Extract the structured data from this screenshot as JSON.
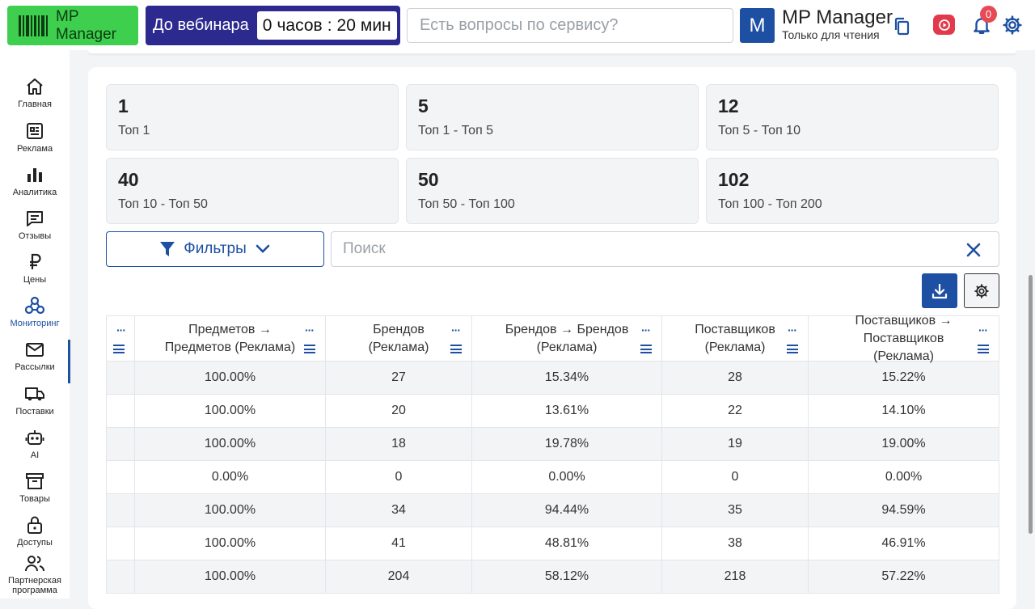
{
  "header": {
    "logo_label": "MP Manager",
    "webinar_label": "До вебинара",
    "timer": {
      "hours": "0",
      "hours_unit": "часов",
      "sep": ":",
      "minutes": "20",
      "minutes_unit": "мин"
    },
    "help_placeholder": "Есть вопросы по сервису?",
    "account": {
      "initial": "M",
      "name": "MP Manager",
      "role": "Только для чтения"
    },
    "notifications_count": "0"
  },
  "sidebar": {
    "items": [
      {
        "label": "Главная",
        "icon": "home-icon"
      },
      {
        "label": "Реклама",
        "icon": "ads-icon"
      },
      {
        "label": "Аналитика",
        "icon": "analytics-icon"
      },
      {
        "label": "Отзывы",
        "icon": "reviews-icon"
      },
      {
        "label": "Цены",
        "icon": "ruble-icon"
      },
      {
        "label": "Мониторинг",
        "icon": "monitoring-icon",
        "active": true
      },
      {
        "label": "Рассылки",
        "icon": "mail-icon"
      },
      {
        "label": "Поставки",
        "icon": "truck-icon"
      },
      {
        "label": "AI",
        "icon": "robot-icon"
      },
      {
        "label": "Товары",
        "icon": "archive-icon"
      },
      {
        "label": "Доступы",
        "icon": "lock-icon"
      },
      {
        "label": "Партнерская программа",
        "icon": "partners-icon"
      }
    ]
  },
  "stats": [
    {
      "value": "1",
      "label": "Топ 1"
    },
    {
      "value": "5",
      "label": "Топ 1 - Топ 5"
    },
    {
      "value": "12",
      "label": "Топ 5 - Топ 10"
    },
    {
      "value": "40",
      "label": "Топ 10 - Топ 50"
    },
    {
      "value": "50",
      "label": "Топ 50 - Топ 100"
    },
    {
      "value": "102",
      "label": "Топ 100 - Топ 200"
    }
  ],
  "filters": {
    "label": "Фильтры"
  },
  "search": {
    "placeholder": "Поиск"
  },
  "table": {
    "columns": [
      "Предметов → Предметов (Реклама)",
      "Брендов (Реклама)",
      "Брендов → Брендов (Реклама)",
      "Поставщиков (Реклама)",
      "Поставщиков → Поставщиков (Реклама)"
    ],
    "rows": [
      [
        "100.00%",
        "27",
        "15.34%",
        "28",
        "15.22%"
      ],
      [
        "100.00%",
        "20",
        "13.61%",
        "22",
        "14.10%"
      ],
      [
        "100.00%",
        "18",
        "19.78%",
        "19",
        "19.00%"
      ],
      [
        "0.00%",
        "0",
        "0.00%",
        "0",
        "0.00%"
      ],
      [
        "100.00%",
        "34",
        "94.44%",
        "35",
        "94.59%"
      ],
      [
        "100.00%",
        "41",
        "48.81%",
        "38",
        "46.91%"
      ],
      [
        "100.00%",
        "204",
        "58.12%",
        "218",
        "57.22%"
      ]
    ]
  },
  "colors": {
    "brand_green": "#3ecf4f",
    "webinar_bg": "#2d2a8f",
    "primary_blue": "#1d4fa3",
    "badge_red": "#e64a55"
  }
}
